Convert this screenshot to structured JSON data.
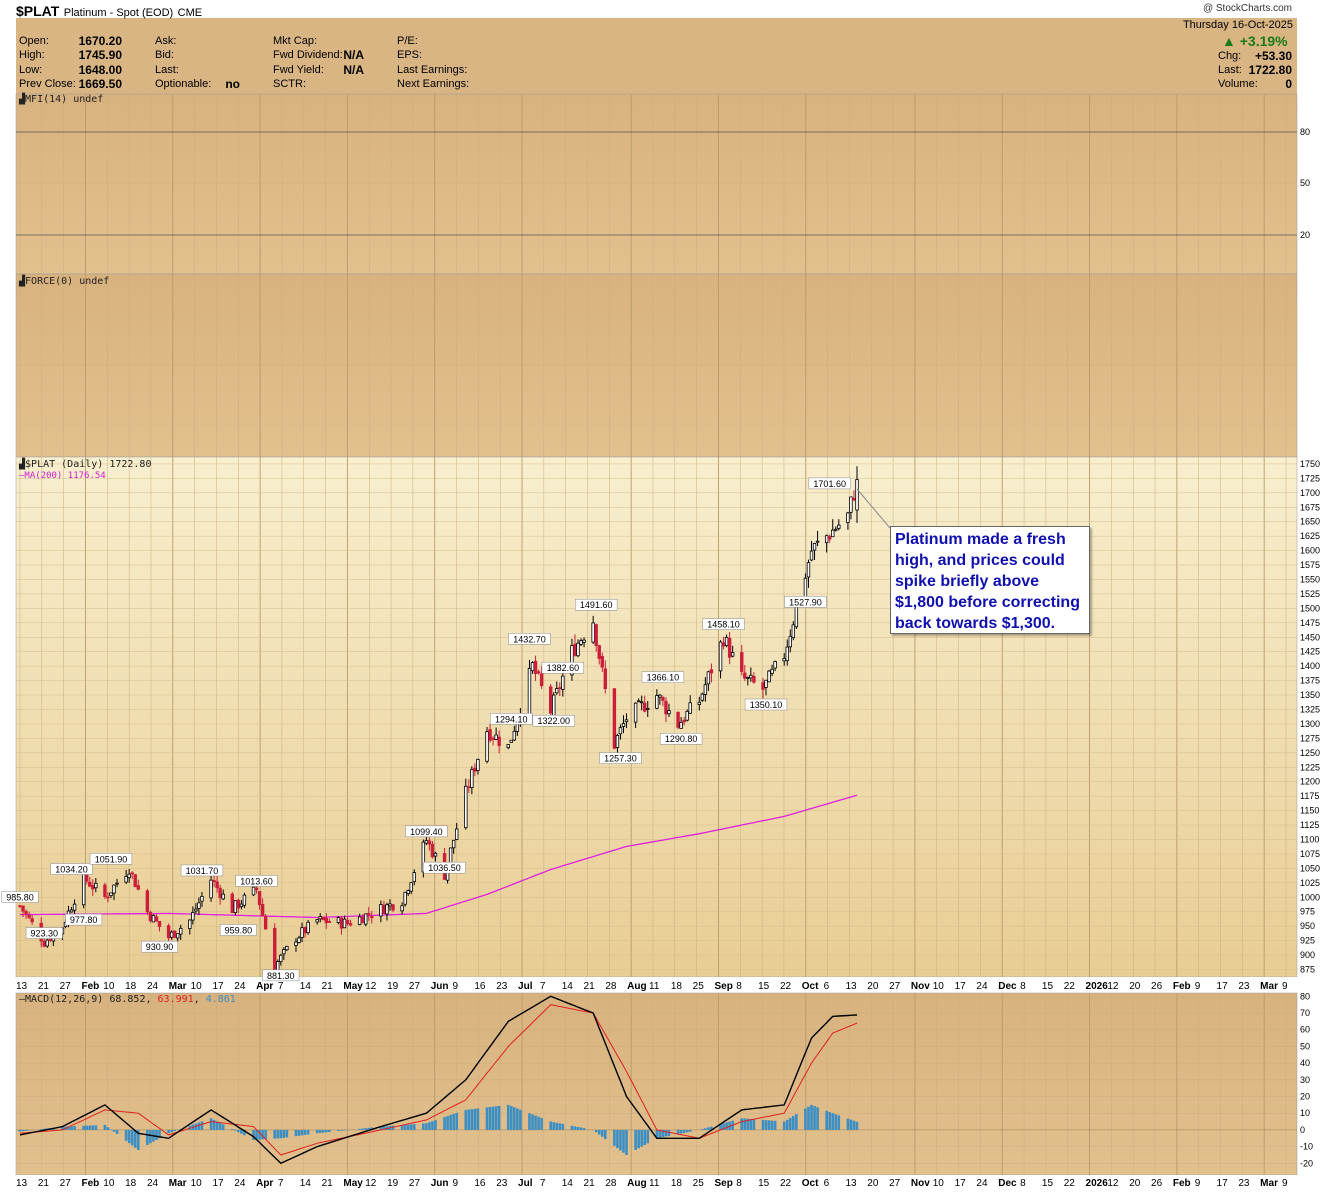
{
  "header": {
    "symbol": "$PLAT",
    "description": "Platinum - Spot (EOD)",
    "exchange": "CME",
    "date": "Thursday  16-Oct-2025",
    "watermark": "@ StockCharts.com",
    "change_pct": "+3.19%",
    "chg_label": "Chg:",
    "chg_value": "+53.30",
    "last_label": "Last:",
    "last_value": "1722.80",
    "volume_label": "Volume:",
    "volume_value": "0",
    "quote": {
      "open_label": "Open:",
      "open": "1670.20",
      "high_label": "High:",
      "high": "1745.90",
      "low_label": "Low:",
      "low": "1648.00",
      "prev_label": "Prev Close:",
      "prev": "1669.50",
      "ask_label": "Ask:",
      "bid_label": "Bid:",
      "last2_label": "Last:",
      "optionable_label": "Optionable:",
      "optionable": "no",
      "mktcap_label": "Mkt Cap:",
      "fwddiv_label": "Fwd Dividend:",
      "fwddiv": "N/A",
      "fwdyield_label": "Fwd Yield:",
      "fwdyield": "N/A",
      "sctr_label": "SCTR:",
      "pe_label": "P/E:",
      "eps_label": "EPS:",
      "lastearn_label": "Last Earnings:",
      "nextearn_label": "Next Earnings:"
    }
  },
  "panes": {
    "mfi_label": "MFI(14) undef",
    "force_label": "FORCE(0) undef",
    "price_label": "$PLAT (Daily) 1722.80",
    "ma_label": "MA(200) 1176.54",
    "macd_label_name": "MACD(12,26,9)",
    "macd_val": "68.852",
    "signal_val": "63.991",
    "hist_val": "4.861"
  },
  "callout": "Platinum made a fresh high, and prices could spike briefly above $1,800 before correcting back towards $1,300.",
  "colors": {
    "bg_header": "#d9b584",
    "bg_price_top": "#f6ecc4",
    "bg_price_bottom": "#e9cf96",
    "up": "#000000",
    "down": "#cc1f3a",
    "ma": "#e020e0",
    "macd": "#000000",
    "signal": "#e02020",
    "hist": "#3b8fc4",
    "callout_text": "#1010b0"
  },
  "chart_data": {
    "type": "line",
    "title": "$PLAT (Daily) 1722.80",
    "ylim": [
      862,
      1762
    ],
    "yticks": [
      875,
      900,
      925,
      950,
      975,
      1000,
      1025,
      1050,
      1075,
      1100,
      1125,
      1150,
      1175,
      1200,
      1225,
      1250,
      1275,
      1300,
      1325,
      1350,
      1375,
      1400,
      1425,
      1450,
      1475,
      1500,
      1525,
      1550,
      1575,
      1600,
      1625,
      1650,
      1675,
      1700,
      1725,
      1750
    ],
    "xticks": [
      "13",
      "21",
      "27",
      "Feb",
      "10",
      "18",
      "24",
      "Mar",
      "10",
      "17",
      "24",
      "Apr",
      "7",
      "14",
      "21",
      "May",
      "12",
      "19",
      "27",
      "Jun",
      "9",
      "16",
      "23",
      "Jul",
      "7",
      "14",
      "21",
      "28",
      "Aug",
      "11",
      "18",
      "25",
      "Sep",
      "8",
      "15",
      "22",
      "Oct",
      "6",
      "13",
      "20",
      "27",
      "Nov",
      "10",
      "17",
      "24",
      "Dec",
      "8",
      "15",
      "22",
      "2026",
      "12",
      "20",
      "26",
      "Feb",
      "9",
      "17",
      "23",
      "Mar",
      "9"
    ],
    "price_anchors": {
      "x": [
        "Jan 13",
        "Jan 21",
        "Jan 27",
        "Feb 3",
        "Feb 10",
        "Feb 18",
        "Feb 24",
        "Mar 3",
        "Mar 10",
        "Mar 17",
        "Mar 24",
        "Apr 1",
        "Apr 7",
        "Apr 14",
        "Apr 21",
        "May 1",
        "May 12",
        "May 19",
        "May 27",
        "Jun 2",
        "Jun 9",
        "Jun 16",
        "Jun 23",
        "Jul 1",
        "Jul 7",
        "Jul 14",
        "Jul 21",
        "Jul 28",
        "Aug 1",
        "Aug 11",
        "Aug 18",
        "Aug 25",
        "Sep 2",
        "Sep 8",
        "Sep 15",
        "Sep 22",
        "Oct 1",
        "Oct 6",
        "Oct 13",
        "Oct 16"
      ],
      "close": [
        985,
        923,
        950,
        1034,
        1000,
        1051,
        975,
        931,
        960,
        1031,
        980,
        1013,
        881,
        930,
        960,
        955,
        980,
        995,
        1099,
        1040,
        1180,
        1290,
        1260,
        1400,
        1322,
        1425,
        1480,
        1265,
        1310,
        1350,
        1300,
        1340,
        1450,
        1380,
        1360,
        1420,
        1600,
        1625,
        1660,
        1722
      ]
    },
    "ma200": {
      "x": [
        "Jan 13",
        "Mar 3",
        "Apr 21",
        "May 27",
        "Jun 16",
        "Jul 7",
        "Aug 1",
        "Aug 25",
        "Sep 22",
        "Oct 16"
      ],
      "values": [
        970,
        972,
        965,
        972,
        1005,
        1048,
        1088,
        1110,
        1140,
        1176.54
      ]
    },
    "annotations": [
      {
        "date": "Jan 13",
        "value": 985.8,
        "label": "985.80"
      },
      {
        "date": "Jan 21",
        "value": 923.3,
        "label": "923.30"
      },
      {
        "date": "Jan 30",
        "value": 1034.2,
        "label": "1034.20"
      },
      {
        "date": "Feb 3",
        "value": 977.8,
        "label": "977.80"
      },
      {
        "date": "Feb 12",
        "value": 1051.9,
        "label": "1051.90"
      },
      {
        "date": "Feb 28",
        "value": 930.9,
        "label": "930.90"
      },
      {
        "date": "Mar 14",
        "value": 1031.7,
        "label": "1031.70"
      },
      {
        "date": "Mar 26",
        "value": 959.8,
        "label": "959.80"
      },
      {
        "date": "Apr 1",
        "value": 1013.6,
        "label": "1013.60"
      },
      {
        "date": "Apr 9",
        "value": 881.3,
        "label": "881.30"
      },
      {
        "date": "May 27",
        "value": 1099.4,
        "label": "1099.40"
      },
      {
        "date": "Jun 2",
        "value": 1036.5,
        "label": "1036.50"
      },
      {
        "date": "Jun 24",
        "value": 1294.1,
        "label": "1294.10"
      },
      {
        "date": "Jun 30",
        "value": 1432.7,
        "label": "1432.70"
      },
      {
        "date": "Jul 8",
        "value": 1322.0,
        "label": "1322.00"
      },
      {
        "date": "Jul 11",
        "value": 1382.6,
        "label": "1382.60"
      },
      {
        "date": "Jul 22",
        "value": 1491.6,
        "label": "1491.60"
      },
      {
        "date": "Jul 30",
        "value": 1257.3,
        "label": "1257.30"
      },
      {
        "date": "Aug 13",
        "value": 1366.1,
        "label": "1366.10"
      },
      {
        "date": "Aug 19",
        "value": 1290.8,
        "label": "1290.80"
      },
      {
        "date": "Sep 2",
        "value": 1458.1,
        "label": "1458.10"
      },
      {
        "date": "Sep 16",
        "value": 1350.1,
        "label": "1350.10"
      },
      {
        "date": "Sep 29",
        "value": 1527.9,
        "label": "1527.90"
      },
      {
        "date": "Oct 7",
        "value": 1701.6,
        "label": "1701.60"
      }
    ],
    "mfi": {
      "yticks": [
        20,
        50,
        80
      ],
      "ylim": [
        0,
        100
      ]
    },
    "macd": {
      "yticks": [
        -20,
        -10,
        0,
        10,
        20,
        30,
        40,
        50,
        60,
        70,
        80
      ],
      "ylim": [
        -27,
        82
      ],
      "x": [
        "Jan 13",
        "Jan 27",
        "Feb 10",
        "Feb 21",
        "Mar 3",
        "Mar 17",
        "Mar 31",
        "Apr 9",
        "Apr 21",
        "May 12",
        "May 27",
        "Jun 9",
        "Jun 23",
        "Jul 7",
        "Jul 21",
        "Aug 1",
        "Aug 11",
        "Aug 25",
        "Sep 8",
        "Sep 22",
        "Oct 1",
        "Oct 8",
        "Oct 16"
      ],
      "macd": [
        -3,
        2,
        15,
        -2,
        -5,
        12,
        -4,
        -20,
        -10,
        2,
        10,
        30,
        65,
        80,
        70,
        20,
        -5,
        -5,
        12,
        15,
        55,
        68,
        68.852
      ],
      "signal": [
        -2,
        0,
        12,
        10,
        -3,
        5,
        2,
        -15,
        -8,
        0,
        6,
        18,
        50,
        75,
        70,
        35,
        0,
        -5,
        5,
        10,
        40,
        58,
        63.991
      ],
      "hist": [
        -1,
        2,
        3,
        -12,
        -2,
        7,
        -6,
        -5,
        -2,
        2,
        4,
        12,
        15,
        5,
        0,
        -15,
        -5,
        0,
        7,
        5,
        15,
        10,
        4.861
      ]
    }
  }
}
